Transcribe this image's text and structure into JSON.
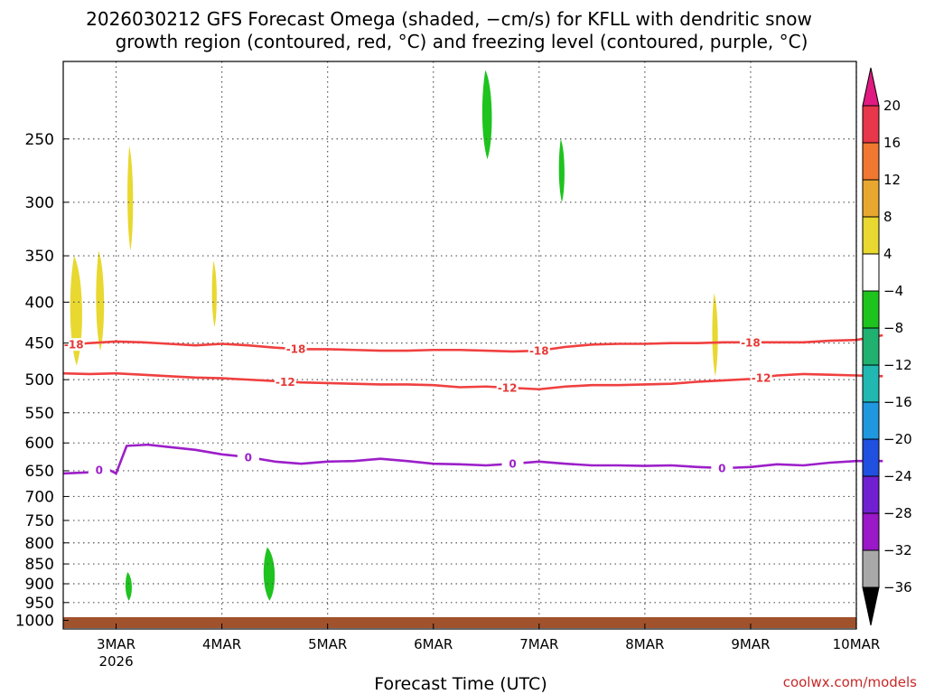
{
  "title_line1": "2026030212 GFS Forecast Omega (shaded, −cm/s) for KFLL with dendritic snow",
  "title_line2": "growth region (contoured, red, °C) and freezing level (contoured, purple, °C)",
  "xlabel": "Forecast Time (UTC)",
  "credit": "coolwx.com/models",
  "colors": {
    "dendritic": "#f04040",
    "freezing": "#9c1fc9",
    "ground": "#a0522d",
    "grid": "#555555"
  },
  "chart_data": {
    "type": "heatmap",
    "x_start": "2026-03-02T12:00Z",
    "x_end": "2026-03-10T00:00Z",
    "x_ticks": [
      {
        "label": "3MAR",
        "sub": "2026",
        "x": "2026-03-03T00:00Z"
      },
      {
        "label": "4MAR",
        "x": "2026-03-04T00:00Z"
      },
      {
        "label": "5MAR",
        "x": "2026-03-05T00:00Z"
      },
      {
        "label": "6MAR",
        "x": "2026-03-06T00:00Z"
      },
      {
        "label": "7MAR",
        "x": "2026-03-07T00:00Z"
      },
      {
        "label": "8MAR",
        "x": "2026-03-08T00:00Z"
      },
      {
        "label": "9MAR",
        "x": "2026-03-09T00:00Z"
      },
      {
        "label": "10MAR",
        "x": "2026-03-10T00:00Z"
      }
    ],
    "y_ticks": [
      250,
      300,
      350,
      400,
      450,
      500,
      550,
      600,
      650,
      700,
      750,
      800,
      850,
      900,
      950,
      1000
    ],
    "y_range": [
      200,
      1025
    ],
    "y_log": true,
    "grid": true,
    "colorbar": {
      "labels": [
        "20",
        "16",
        "12",
        "8",
        "4",
        "−4",
        "−8",
        "−12",
        "−16",
        "−20",
        "−24",
        "−28",
        "−32",
        "−36"
      ],
      "colors": [
        "#e8364a",
        "#f07830",
        "#e8a830",
        "#e8d830",
        "#ffffff",
        "#1ec31e",
        "#20b070",
        "#20b8b0",
        "#2098e0",
        "#2050e0",
        "#7020d0",
        "#9a18c8",
        "#a8a8a8"
      ],
      "top_arrow_color": "#e01a80",
      "bottom_arrow_color": "#000000"
    },
    "contours": [
      {
        "label": "-18",
        "points": [
          [
            0,
            453
          ],
          [
            0.25,
            450
          ],
          [
            0.5,
            448
          ],
          [
            0.75,
            449
          ],
          [
            1.0,
            451
          ],
          [
            1.25,
            453
          ],
          [
            1.5,
            451
          ],
          [
            1.75,
            453
          ],
          [
            2.0,
            456
          ],
          [
            2.25,
            458
          ],
          [
            2.5,
            458
          ],
          [
            2.75,
            459
          ],
          [
            3.0,
            460
          ],
          [
            3.25,
            460
          ],
          [
            3.5,
            459
          ],
          [
            3.75,
            459
          ],
          [
            4.0,
            460
          ],
          [
            4.25,
            461
          ],
          [
            4.5,
            460
          ],
          [
            4.75,
            455
          ],
          [
            5.0,
            452
          ],
          [
            5.25,
            451
          ],
          [
            5.5,
            451
          ],
          [
            5.75,
            450
          ],
          [
            6.0,
            450
          ],
          [
            6.25,
            449
          ],
          [
            6.5,
            449
          ],
          [
            6.75,
            449
          ],
          [
            7.0,
            449
          ],
          [
            7.25,
            447
          ],
          [
            7.5,
            446
          ],
          [
            7.75,
            440
          ]
        ],
        "label_x": [
          0.1,
          2.2,
          4.5,
          6.5
        ]
      },
      {
        "label": "-12",
        "points": [
          [
            0,
            491
          ],
          [
            0.25,
            492
          ],
          [
            0.5,
            491
          ],
          [
            0.75,
            493
          ],
          [
            1.0,
            495
          ],
          [
            1.25,
            497
          ],
          [
            1.5,
            498
          ],
          [
            1.75,
            500
          ],
          [
            2.0,
            502
          ],
          [
            2.25,
            504
          ],
          [
            2.5,
            505
          ],
          [
            2.75,
            506
          ],
          [
            3.0,
            507
          ],
          [
            3.25,
            507
          ],
          [
            3.5,
            508
          ],
          [
            3.75,
            511
          ],
          [
            4.0,
            510
          ],
          [
            4.25,
            512
          ],
          [
            4.5,
            514
          ],
          [
            4.75,
            510
          ],
          [
            5.0,
            508
          ],
          [
            5.25,
            508
          ],
          [
            5.5,
            507
          ],
          [
            5.75,
            506
          ],
          [
            6.0,
            503
          ],
          [
            6.25,
            501
          ],
          [
            6.5,
            499
          ],
          [
            6.75,
            494
          ],
          [
            7.0,
            492
          ],
          [
            7.25,
            493
          ],
          [
            7.5,
            494
          ],
          [
            7.75,
            495
          ]
        ],
        "label_x": [
          2.1,
          4.2,
          6.6
        ]
      },
      {
        "label": "0",
        "points": [
          [
            0,
            655
          ],
          [
            0.25,
            653
          ],
          [
            0.4,
            645
          ],
          [
            0.5,
            655
          ],
          [
            0.6,
            605
          ],
          [
            0.8,
            603
          ],
          [
            1.0,
            607
          ],
          [
            1.25,
            612
          ],
          [
            1.5,
            620
          ],
          [
            1.75,
            625
          ],
          [
            2.0,
            633
          ],
          [
            2.25,
            637
          ],
          [
            2.5,
            633
          ],
          [
            2.75,
            632
          ],
          [
            3.0,
            628
          ],
          [
            3.25,
            632
          ],
          [
            3.5,
            637
          ],
          [
            3.75,
            638
          ],
          [
            4.0,
            640
          ],
          [
            4.25,
            637
          ],
          [
            4.5,
            633
          ],
          [
            4.75,
            637
          ],
          [
            5.0,
            640
          ],
          [
            5.25,
            640
          ],
          [
            5.5,
            641
          ],
          [
            5.75,
            640
          ],
          [
            6.0,
            643
          ],
          [
            6.25,
            645
          ],
          [
            6.5,
            643
          ],
          [
            6.75,
            638
          ],
          [
            7.0,
            640
          ],
          [
            7.25,
            635
          ],
          [
            7.5,
            632
          ],
          [
            7.75,
            632
          ]
        ],
        "label_x": [
          0.34,
          1.75,
          4.25,
          6.23
        ]
      }
    ],
    "omega_regions": [
      {
        "value": 6,
        "x": [
          0.05,
          0.2
        ],
        "p": [
          350,
          480
        ]
      },
      {
        "value": 6,
        "x": [
          0.3,
          0.4
        ],
        "p": [
          345,
          460
        ]
      },
      {
        "value": 6,
        "x": [
          0.6,
          0.67
        ],
        "p": [
          255,
          345
        ]
      },
      {
        "value": 6,
        "x": [
          1.4,
          1.46
        ],
        "p": [
          355,
          430
        ]
      },
      {
        "value": 6,
        "x": [
          6.13,
          6.2
        ],
        "p": [
          390,
          495
        ]
      },
      {
        "value": -6,
        "x": [
          0.58,
          0.66
        ],
        "p": [
          870,
          945
        ]
      },
      {
        "value": -6,
        "x": [
          1.88,
          2.02
        ],
        "p": [
          810,
          945
        ]
      },
      {
        "value": -6,
        "x": [
          3.95,
          4.07
        ],
        "p": [
          205,
          265
        ]
      },
      {
        "value": -6,
        "x": [
          4.68,
          4.75
        ],
        "p": [
          250,
          300
        ]
      }
    ]
  }
}
